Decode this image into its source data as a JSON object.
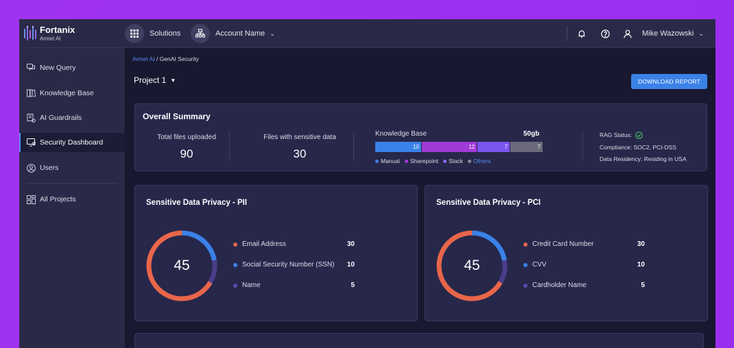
{
  "header": {
    "brand": "Fortanix",
    "brand_sub": "Armet AI",
    "solutions_label": "Solutions",
    "account_label": "Account Name",
    "user_name": "Mike Wazowski",
    "icons": [
      "grid-icon",
      "org-icon",
      "bell-icon",
      "help-icon",
      "user-icon"
    ]
  },
  "sidebar": {
    "items": [
      {
        "label": "New Query",
        "icon": "chat-icon"
      },
      {
        "label": "Knowledge Base",
        "icon": "book-icon"
      },
      {
        "label": "AI Guardrails",
        "icon": "guard-icon"
      },
      {
        "label": "Security Dashboard",
        "icon": "monitor-shield-icon",
        "active": true
      },
      {
        "label": "Users",
        "icon": "user-circle-icon"
      },
      {
        "label": "All Projects",
        "icon": "projects-grid-icon"
      }
    ]
  },
  "breadcrumb": {
    "root": "Armet AI",
    "separator": "/",
    "current": "GenAI Security"
  },
  "project": {
    "label": "Project 1"
  },
  "download_button": "DOWNLOAD REPORT",
  "summary": {
    "title": "Overall Summary",
    "total_files_label": "Total files uploaded",
    "total_files_value": "90",
    "sensitive_label": "Files with sensitive data",
    "sensitive_value": "30",
    "kb_label": "Knowledge Base",
    "kb_size": "50gb",
    "kb_segments": [
      {
        "name": "Manual",
        "value": 10,
        "color": "#3b82e8"
      },
      {
        "name": "Sharepoint",
        "value": 12,
        "color": "#a23ad6"
      },
      {
        "name": "Slack",
        "value": 7,
        "color": "#7b55f0"
      },
      {
        "name": "Others",
        "value": 7,
        "color": "#6a6a7a"
      }
    ],
    "rag_status": "RAG Status:",
    "compliance": "Compliance: SOC2, PCI-DSS",
    "residency": "Data Residency: Residing in USA"
  },
  "pii": {
    "title": "Sensitive Data Privacy - PII",
    "total": "45",
    "items": [
      {
        "label": "Email Address",
        "value": 30,
        "color": "#e8664a"
      },
      {
        "label": "Social Security Number (SSN)",
        "value": 10,
        "color": "#3b82e8"
      },
      {
        "label": "Name",
        "value": 5,
        "color": "#4a3d8a"
      }
    ]
  },
  "pci": {
    "title": "Sensitive Data Privacy - PCI",
    "total": "45",
    "items": [
      {
        "label": "Credit Card Number",
        "value": 30,
        "color": "#e8664a"
      },
      {
        "label": "CVV",
        "value": 10,
        "color": "#3b82e8"
      },
      {
        "label": "Cardholder Name",
        "value": 5,
        "color": "#4a3d8a"
      }
    ]
  }
}
